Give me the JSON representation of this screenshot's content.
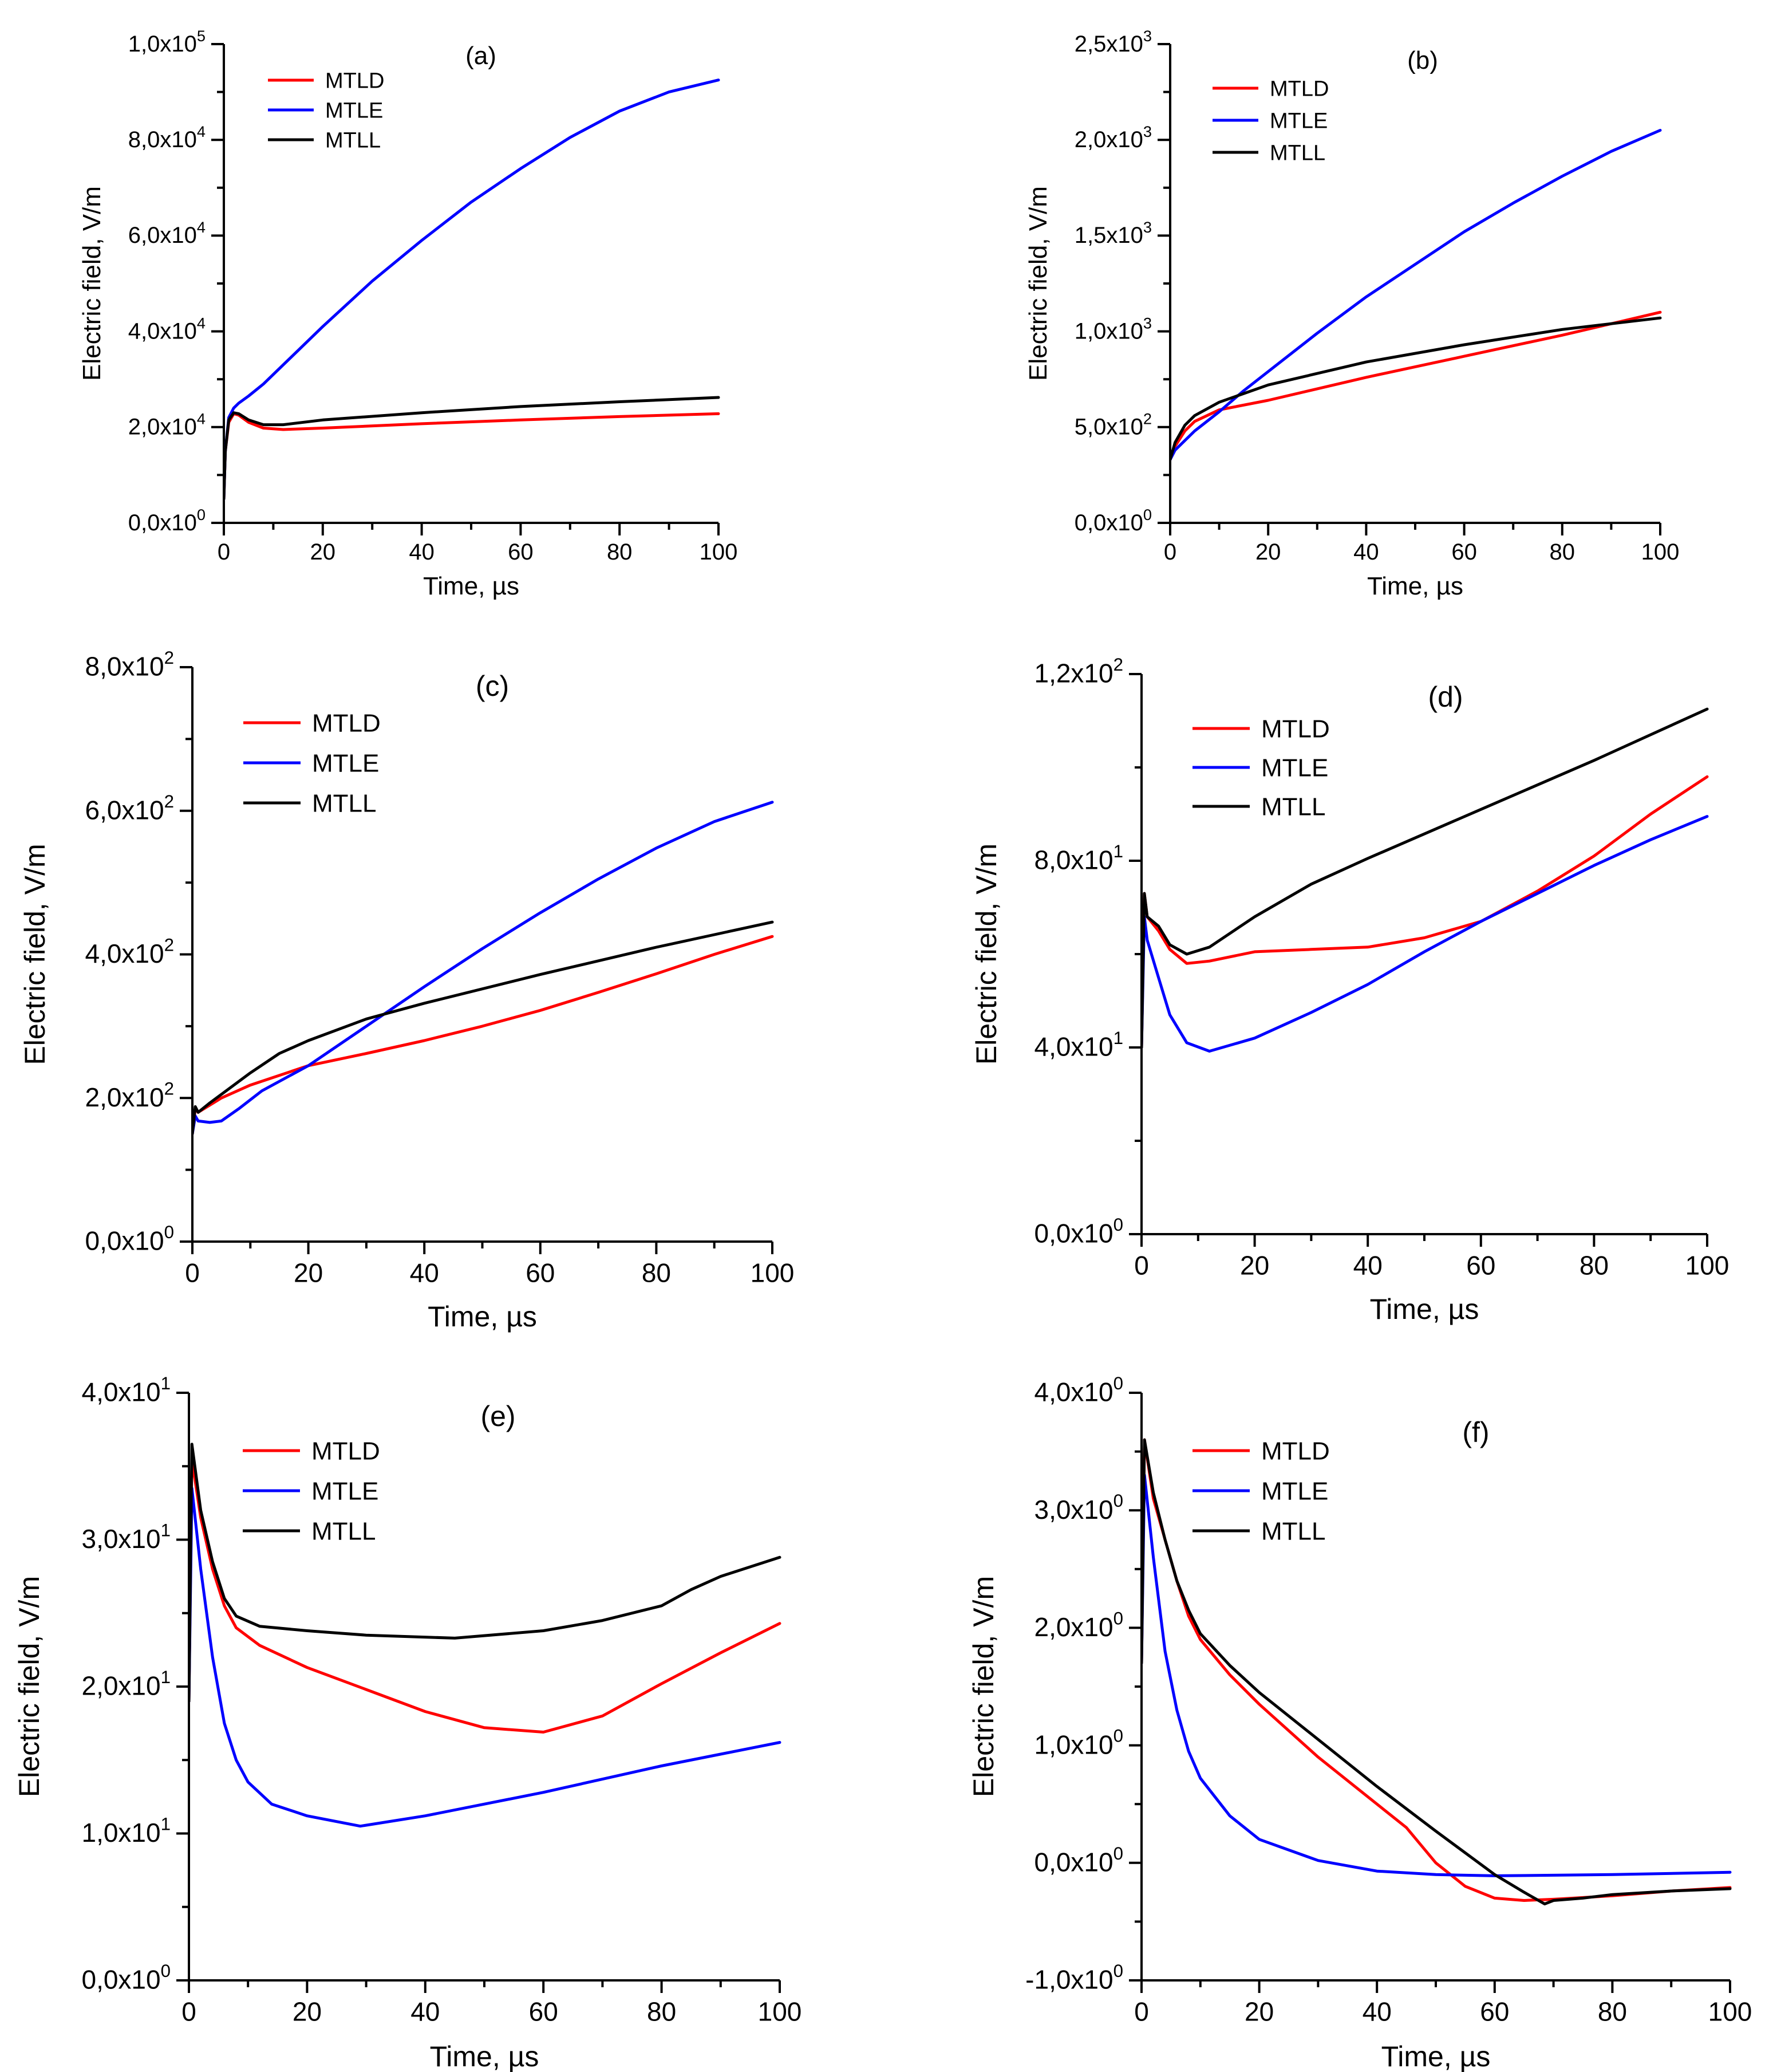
{
  "colors": {
    "MTLD": "#ff0000",
    "MTLE": "#0000ff",
    "MTLL": "#000000"
  },
  "chart_data": [
    {
      "type": "line",
      "panel": "(a)",
      "xlabel": "Time, µs",
      "ylabel": "Electric field, V/m",
      "xlim": [
        0,
        100
      ],
      "ylim": [
        0,
        100000
      ],
      "x_ticks": [
        "0",
        "20",
        "40",
        "60",
        "80",
        "100"
      ],
      "y_ticks": [
        {
          "mantissa": "0,0x10",
          "exp": "0"
        },
        {
          "mantissa": "2,0x10",
          "exp": "4"
        },
        {
          "mantissa": "4,0x10",
          "exp": "4"
        },
        {
          "mantissa": "6,0x10",
          "exp": "4"
        },
        {
          "mantissa": "8,0x10",
          "exp": "4"
        },
        {
          "mantissa": "1,0x10",
          "exp": "5"
        }
      ],
      "legend": [
        "MTLD",
        "MTLE",
        "MTLL"
      ],
      "series": [
        {
          "name": "MTLD",
          "x": [
            0,
            0.3,
            1,
            2,
            3,
            5,
            8,
            12,
            20,
            40,
            60,
            80,
            100
          ],
          "y": [
            5000,
            15000,
            21000,
            22800,
            22500,
            21000,
            19800,
            19500,
            19800,
            20700,
            21500,
            22200,
            22800
          ]
        },
        {
          "name": "MTLE",
          "x": [
            0,
            0.3,
            1,
            2,
            3,
            5,
            8,
            12,
            20,
            30,
            40,
            50,
            60,
            70,
            80,
            90,
            100
          ],
          "y": [
            5000,
            15000,
            22000,
            24000,
            25000,
            26500,
            29000,
            33000,
            41000,
            50500,
            59000,
            67000,
            74000,
            80500,
            86000,
            90000,
            92500
          ]
        },
        {
          "name": "MTLL",
          "x": [
            0,
            0.3,
            1,
            2,
            3,
            5,
            8,
            12,
            20,
            40,
            60,
            80,
            100
          ],
          "y": [
            5000,
            15000,
            21500,
            23000,
            22800,
            21500,
            20500,
            20500,
            21500,
            23000,
            24300,
            25300,
            26200
          ]
        }
      ]
    },
    {
      "type": "line",
      "panel": "(b)",
      "xlabel": "Time, µs",
      "ylabel": "Electric field, V/m",
      "xlim": [
        0,
        100
      ],
      "ylim": [
        0,
        2500
      ],
      "x_ticks": [
        "0",
        "20",
        "40",
        "60",
        "80",
        "100"
      ],
      "y_ticks": [
        {
          "mantissa": "0,0x10",
          "exp": "0"
        },
        {
          "mantissa": "5,0x10",
          "exp": "2"
        },
        {
          "mantissa": "1,0x10",
          "exp": "3"
        },
        {
          "mantissa": "1,5x10",
          "exp": "3"
        },
        {
          "mantissa": "2,0x10",
          "exp": "3"
        },
        {
          "mantissa": "2,5x10",
          "exp": "3"
        }
      ],
      "legend": [
        "MTLD",
        "MTLE",
        "MTLL"
      ],
      "series": [
        {
          "name": "MTLD",
          "x": [
            0,
            1,
            3,
            5,
            10,
            20,
            40,
            60,
            80,
            100
          ],
          "y": [
            330,
            400,
            480,
            530,
            590,
            640,
            760,
            870,
            980,
            1100
          ]
        },
        {
          "name": "MTLE",
          "x": [
            0,
            1,
            3,
            5,
            10,
            15,
            20,
            30,
            40,
            50,
            60,
            70,
            80,
            90,
            100
          ],
          "y": [
            330,
            380,
            430,
            480,
            580,
            690,
            790,
            990,
            1180,
            1350,
            1520,
            1670,
            1810,
            1940,
            2050
          ]
        },
        {
          "name": "MTLL",
          "x": [
            0,
            1,
            3,
            5,
            10,
            20,
            40,
            60,
            80,
            100
          ],
          "y": [
            330,
            420,
            510,
            560,
            630,
            720,
            840,
            930,
            1010,
            1070
          ]
        }
      ]
    },
    {
      "type": "line",
      "panel": "(c)",
      "xlabel": "Time, µs",
      "ylabel": "Electric field, V/m",
      "xlim": [
        0,
        100
      ],
      "ylim": [
        0,
        800
      ],
      "x_ticks": [
        "0",
        "20",
        "40",
        "60",
        "80",
        "100"
      ],
      "y_ticks": [
        {
          "mantissa": "0,0x10",
          "exp": "0"
        },
        {
          "mantissa": "2,0x10",
          "exp": "2"
        },
        {
          "mantissa": "4,0x10",
          "exp": "2"
        },
        {
          "mantissa": "6,0x10",
          "exp": "2"
        },
        {
          "mantissa": "8,0x10",
          "exp": "2"
        }
      ],
      "legend": [
        "MTLD",
        "MTLE",
        "MTLL"
      ],
      "series": [
        {
          "name": "MTLD",
          "x": [
            0,
            0.5,
            1,
            3,
            5,
            10,
            20,
            30,
            40,
            50,
            60,
            70,
            80,
            90,
            100
          ],
          "y": [
            150,
            185,
            180,
            190,
            200,
            218,
            245,
            262,
            280,
            300,
            322,
            347,
            373,
            400,
            425
          ]
        },
        {
          "name": "MTLE",
          "x": [
            0,
            0.5,
            1,
            3,
            5,
            8,
            12,
            20,
            30,
            40,
            50,
            60,
            70,
            80,
            90,
            100
          ],
          "y": [
            150,
            175,
            168,
            166,
            168,
            185,
            210,
            245,
            300,
            355,
            408,
            458,
            505,
            548,
            585,
            612
          ]
        },
        {
          "name": "MTLL",
          "x": [
            0,
            0.5,
            1,
            3,
            5,
            10,
            15,
            20,
            30,
            40,
            60,
            80,
            100
          ],
          "y": [
            150,
            188,
            180,
            193,
            205,
            235,
            262,
            280,
            310,
            332,
            372,
            410,
            445
          ]
        }
      ]
    },
    {
      "type": "line",
      "panel": "(d)",
      "xlabel": "Time, µs",
      "ylabel": "Electric field, V/m",
      "xlim": [
        0,
        100
      ],
      "ylim": [
        0,
        120
      ],
      "x_ticks": [
        "0",
        "20",
        "40",
        "60",
        "80",
        "100"
      ],
      "y_ticks": [
        {
          "mantissa": "0,0x10",
          "exp": "0"
        },
        {
          "mantissa": "4,0x10",
          "exp": "1"
        },
        {
          "mantissa": "8,0x10",
          "exp": "1"
        },
        {
          "mantissa": "1,2x10",
          "exp": "2"
        }
      ],
      "legend": [
        "MTLD",
        "MTLE",
        "MTLL"
      ],
      "series": [
        {
          "name": "MTLD",
          "x": [
            0,
            0.5,
            1,
            3,
            5,
            8,
            12,
            20,
            30,
            40,
            50,
            60,
            70,
            80,
            90,
            100
          ],
          "y": [
            40,
            73,
            68,
            65,
            61,
            58,
            58.5,
            60.5,
            61,
            61.5,
            63.5,
            67,
            73.5,
            81,
            90,
            98
          ]
        },
        {
          "name": "MTLE",
          "x": [
            0,
            0.5,
            1,
            3,
            5,
            8,
            12,
            20,
            30,
            40,
            50,
            60,
            70,
            80,
            90,
            100
          ],
          "y": [
            40,
            68,
            63,
            55,
            47,
            41,
            39.2,
            42,
            47.5,
            53.5,
            60.5,
            67,
            73,
            79,
            84.5,
            89.5
          ]
        },
        {
          "name": "MTLL",
          "x": [
            0,
            0.5,
            1,
            3,
            5,
            8,
            12,
            20,
            30,
            40,
            60,
            80,
            100
          ],
          "y": [
            40,
            73,
            68,
            66,
            62,
            60,
            61.5,
            68,
            75,
            80.5,
            91,
            101.5,
            112.5
          ]
        }
      ]
    },
    {
      "type": "line",
      "panel": "(e)",
      "xlabel": "Time, µs",
      "ylabel": "Electric field, V/m",
      "xlim": [
        0,
        100
      ],
      "ylim": [
        0,
        40
      ],
      "x_ticks": [
        "0",
        "20",
        "40",
        "60",
        "80",
        "100"
      ],
      "y_ticks": [
        {
          "mantissa": "0,0x10",
          "exp": "0"
        },
        {
          "mantissa": "1,0x10",
          "exp": "1"
        },
        {
          "mantissa": "2,0x10",
          "exp": "1"
        },
        {
          "mantissa": "3,0x10",
          "exp": "1"
        },
        {
          "mantissa": "4,0x10",
          "exp": "1"
        }
      ],
      "legend": [
        "MTLD",
        "MTLE",
        "MTLL"
      ],
      "series": [
        {
          "name": "MTLD",
          "x": [
            0,
            0.5,
            2,
            4,
            6,
            8,
            12,
            20,
            30,
            40,
            50,
            60,
            70,
            80,
            90,
            100
          ],
          "y": [
            19,
            35.5,
            31.5,
            28,
            25.5,
            24,
            22.8,
            21.3,
            19.8,
            18.3,
            17.2,
            16.9,
            18,
            20.2,
            22.3,
            24.3
          ]
        },
        {
          "name": "MTLE",
          "x": [
            0,
            0.5,
            2,
            4,
            6,
            8,
            10,
            14,
            20,
            29,
            40,
            50,
            60,
            70,
            80,
            90,
            100
          ],
          "y": [
            19,
            33.5,
            28,
            22,
            17.5,
            15,
            13.5,
            12,
            11.2,
            10.5,
            11.2,
            12,
            12.8,
            13.7,
            14.6,
            15.4,
            16.2
          ]
        },
        {
          "name": "MTLL",
          "x": [
            0,
            0.5,
            2,
            4,
            6,
            8,
            12,
            20,
            30,
            45,
            60,
            70,
            80,
            85,
            90,
            100
          ],
          "y": [
            19,
            36.5,
            32,
            28.5,
            26,
            24.8,
            24.1,
            23.8,
            23.5,
            23.3,
            23.8,
            24.5,
            25.5,
            26.6,
            27.5,
            28.8
          ]
        }
      ]
    },
    {
      "type": "line",
      "panel": "(f)",
      "xlabel": "Time, µs",
      "ylabel": "Electric field, V/m",
      "xlim": [
        0,
        100
      ],
      "ylim": [
        -1,
        4
      ],
      "x_ticks": [
        "0",
        "20",
        "40",
        "60",
        "80",
        "100"
      ],
      "y_ticks": [
        {
          "mantissa": "-1,0x10",
          "exp": "0"
        },
        {
          "mantissa": "0,0x10",
          "exp": "0"
        },
        {
          "mantissa": "1,0x10",
          "exp": "0"
        },
        {
          "mantissa": "2,0x10",
          "exp": "0"
        },
        {
          "mantissa": "3,0x10",
          "exp": "0"
        },
        {
          "mantissa": "4,0x10",
          "exp": "0"
        }
      ],
      "legend": [
        "MTLD",
        "MTLE",
        "MTLL"
      ],
      "series": [
        {
          "name": "MTLD",
          "x": [
            0,
            0.5,
            2,
            4,
            6,
            8,
            10,
            15,
            20,
            30,
            40,
            45,
            50,
            55,
            60,
            65,
            70,
            80,
            90,
            100
          ],
          "y": [
            1.7,
            3.6,
            3.1,
            2.75,
            2.4,
            2.1,
            1.9,
            1.6,
            1.35,
            0.9,
            0.5,
            0.3,
            0.0,
            -0.2,
            -0.3,
            -0.32,
            -0.31,
            -0.28,
            -0.24,
            -0.21
          ]
        },
        {
          "name": "MTLE",
          "x": [
            0,
            0.5,
            2,
            4,
            6,
            8,
            10,
            15,
            20,
            30,
            40,
            50,
            60,
            80,
            100
          ],
          "y": [
            1.7,
            3.3,
            2.6,
            1.8,
            1.3,
            0.95,
            0.72,
            0.4,
            0.2,
            0.02,
            -0.07,
            -0.1,
            -0.11,
            -0.1,
            -0.08
          ]
        },
        {
          "name": "MTLL",
          "x": [
            0,
            0.5,
            2,
            4,
            6,
            8,
            10,
            15,
            20,
            30,
            40,
            50,
            60,
            65,
            68.5,
            70,
            75,
            80,
            90,
            100
          ],
          "y": [
            1.7,
            3.6,
            3.15,
            2.75,
            2.4,
            2.15,
            1.95,
            1.68,
            1.45,
            1.05,
            0.65,
            0.27,
            -0.1,
            -0.25,
            -0.35,
            -0.32,
            -0.3,
            -0.27,
            -0.24,
            -0.22
          ]
        }
      ]
    }
  ]
}
